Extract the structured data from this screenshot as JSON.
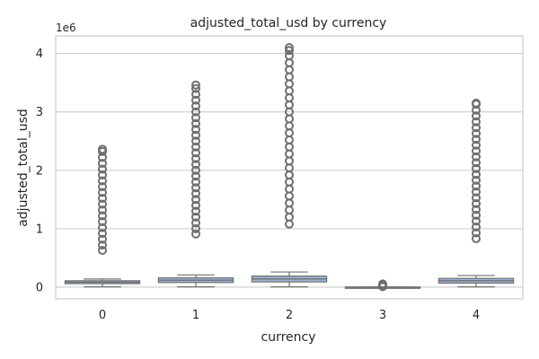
{
  "chart_data": {
    "type": "box",
    "title": "adjusted_total_usd by currency",
    "xlabel": "currency",
    "ylabel": "adjusted_total_usd",
    "y_multiplier_label": "1e6",
    "y_scale": 1000000,
    "ylim": [
      -0.2,
      4.3
    ],
    "yticks": [
      0,
      1,
      2,
      3,
      4
    ],
    "categories": [
      "0",
      "1",
      "2",
      "3",
      "4"
    ],
    "grid": "horizontal",
    "box_color": "#9bb4d6",
    "edge_color": "#6f6f6f",
    "boxes": [
      {
        "category": "0",
        "whisker_low": 0.005,
        "q1": 0.06,
        "median": 0.085,
        "q3": 0.11,
        "whisker_high": 0.14,
        "outliers": [
          0.63,
          0.72,
          0.82,
          0.92,
          1.02,
          1.12,
          1.22,
          1.32,
          1.42,
          1.52,
          1.62,
          1.72,
          1.82,
          1.92,
          2.02,
          2.12,
          2.22,
          2.32,
          2.36
        ]
      },
      {
        "category": "1",
        "whisker_low": 0.005,
        "q1": 0.08,
        "median": 0.12,
        "q3": 0.16,
        "whisker_high": 0.21,
        "outliers": [
          0.91,
          1.0,
          1.1,
          1.2,
          1.3,
          1.4,
          1.5,
          1.6,
          1.7,
          1.8,
          1.9,
          2.0,
          2.1,
          2.2,
          2.3,
          2.4,
          2.5,
          2.6,
          2.7,
          2.8,
          2.9,
          3.0,
          3.1,
          3.2,
          3.3,
          3.4,
          3.46
        ]
      },
      {
        "category": "2",
        "whisker_low": 0.005,
        "q1": 0.09,
        "median": 0.14,
        "q3": 0.19,
        "whisker_high": 0.26,
        "outliers": [
          1.08,
          1.2,
          1.32,
          1.44,
          1.56,
          1.68,
          1.8,
          1.92,
          2.04,
          2.16,
          2.28,
          2.4,
          2.52,
          2.64,
          2.76,
          2.88,
          3.0,
          3.12,
          3.24,
          3.36,
          3.48,
          3.6,
          3.72,
          3.84,
          3.96,
          4.05,
          4.1
        ]
      },
      {
        "category": "3",
        "whisker_low": -0.005,
        "q1": -0.003,
        "median": 0.0,
        "q3": 0.003,
        "whisker_high": 0.005,
        "outliers": [
          0.01,
          0.025,
          0.04,
          0.055
        ]
      },
      {
        "category": "4",
        "whisker_low": 0.005,
        "q1": 0.07,
        "median": 0.11,
        "q3": 0.15,
        "whisker_high": 0.2,
        "outliers": [
          0.83,
          0.93,
          1.03,
          1.13,
          1.23,
          1.33,
          1.43,
          1.53,
          1.63,
          1.73,
          1.83,
          1.93,
          2.03,
          2.13,
          2.23,
          2.33,
          2.43,
          2.53,
          2.63,
          2.73,
          2.83,
          2.93,
          3.03,
          3.13,
          3.15
        ]
      }
    ]
  }
}
